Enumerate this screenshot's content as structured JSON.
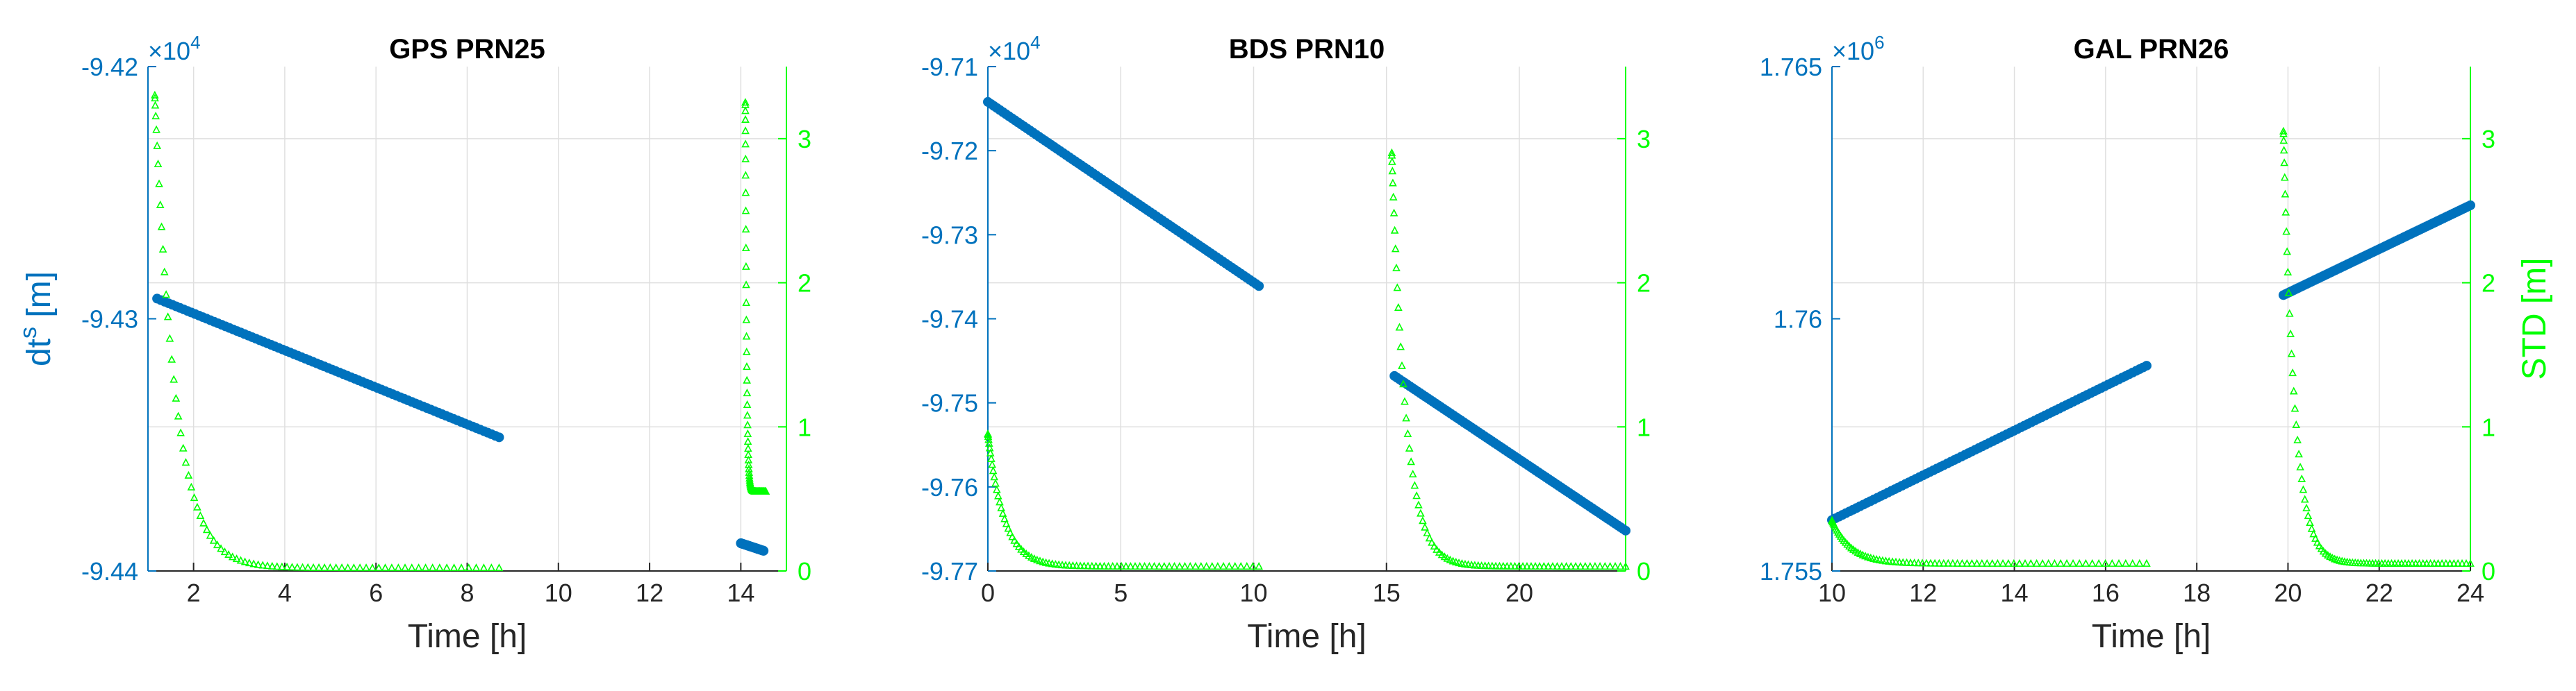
{
  "colors": {
    "left_axis": "#0072BD",
    "right_axis": "#00FF00",
    "axes_text": "#262626",
    "grid": "#DFDFDF"
  },
  "chart_data": [
    {
      "type": "line",
      "title": "GPS PRN25",
      "xlabel": "Time [h]",
      "ylabel_left": "dt^s [m]",
      "ylabel_right": "",
      "xlim": [
        1,
        15
      ],
      "ylim_left": [
        -9.44,
        -9.42
      ],
      "ylim_right": [
        0,
        3.5
      ],
      "left_exponent": "4",
      "x_ticks": [
        2,
        4,
        6,
        8,
        10,
        12,
        14
      ],
      "x_tick_labels": [
        "2",
        "4",
        "6",
        "8",
        "10",
        "12",
        "14"
      ],
      "y_left_ticks": [
        -9.44,
        -9.43,
        -9.42
      ],
      "y_left_tick_labels": [
        "-9.44",
        "-9.43",
        "-9.42"
      ],
      "y_right_ticks": [
        0,
        1,
        2,
        3
      ],
      "y_right_tick_labels": [
        "0",
        "1",
        "2",
        "3"
      ],
      "series": [
        {
          "name": "dt^s",
          "axis": "left",
          "marker": "o",
          "segments": [
            {
              "x0": 1.2,
              "x1": 8.7,
              "y0": -9.4292,
              "y1": -9.4347,
              "shape": "linear"
            },
            {
              "x0": 14.0,
              "x1": 14.5,
              "y0": -9.4389,
              "y1": -9.4392,
              "shape": "linear"
            }
          ]
        },
        {
          "name": "STD",
          "axis": "right",
          "marker": "^",
          "segments": [
            {
              "x0": 1.15,
              "x1": 8.7,
              "start": 3.3,
              "end": 0.02,
              "shape": "decay"
            },
            {
              "x0": 14.1,
              "x1": 14.55,
              "start": 3.25,
              "end": 0.55,
              "shape": "decay"
            }
          ]
        }
      ]
    },
    {
      "type": "line",
      "title": "BDS PRN10",
      "xlabel": "Time [h]",
      "ylabel_left": "",
      "ylabel_right": "",
      "xlim": [
        0,
        24
      ],
      "ylim_left": [
        -9.77,
        -9.71
      ],
      "ylim_right": [
        0,
        3.5
      ],
      "left_exponent": "4",
      "x_ticks": [
        0,
        5,
        10,
        15,
        20
      ],
      "x_tick_labels": [
        "0",
        "5",
        "10",
        "15",
        "20"
      ],
      "y_left_ticks": [
        -9.77,
        -9.76,
        -9.75,
        -9.74,
        -9.73,
        -9.72,
        -9.71
      ],
      "y_left_tick_labels": [
        "-9.77",
        "-9.76",
        "-9.75",
        "-9.74",
        "-9.73",
        "-9.72",
        "-9.71"
      ],
      "y_right_ticks": [
        0,
        1,
        2,
        3
      ],
      "y_right_tick_labels": [
        "0",
        "1",
        "2",
        "3"
      ],
      "series": [
        {
          "name": "dt^s",
          "axis": "left",
          "marker": "o",
          "segments": [
            {
              "x0": 0.0,
              "x1": 10.2,
              "y0": -9.7142,
              "y1": -9.7361,
              "shape": "linear"
            },
            {
              "x0": 15.3,
              "x1": 24.0,
              "y0": -9.7468,
              "y1": -9.7652,
              "shape": "linear"
            }
          ]
        },
        {
          "name": "STD",
          "axis": "right",
          "marker": "^",
          "segments": [
            {
              "x0": 0.0,
              "x1": 10.2,
              "start": 0.95,
              "end": 0.03,
              "shape": "decay"
            },
            {
              "x0": 15.2,
              "x1": 24.0,
              "start": 2.9,
              "end": 0.03,
              "shape": "decay"
            }
          ]
        }
      ]
    },
    {
      "type": "line",
      "title": "GAL PRN26",
      "xlabel": "Time [h]",
      "ylabel_left": "",
      "ylabel_right": "STD [m]",
      "xlim": [
        10,
        24
      ],
      "ylim_left": [
        1.755,
        1.765
      ],
      "ylim_right": [
        0,
        3.5
      ],
      "left_exponent": "6",
      "x_ticks": [
        10,
        12,
        14,
        16,
        18,
        20,
        22,
        24
      ],
      "x_tick_labels": [
        "10",
        "12",
        "14",
        "16",
        "18",
        "20",
        "22",
        "24"
      ],
      "y_left_ticks": [
        1.755,
        1.76,
        1.765
      ],
      "y_left_tick_labels": [
        "1.755",
        "1.76",
        "1.765"
      ],
      "y_right_ticks": [
        0,
        1,
        2,
        3
      ],
      "y_right_tick_labels": [
        "0",
        "1",
        "2",
        "3"
      ],
      "series": [
        {
          "name": "dt^s",
          "axis": "left",
          "marker": "o",
          "segments": [
            {
              "x0": 10.0,
              "x1": 16.9,
              "y0": 1.75601,
              "y1": 1.75907,
              "shape": "linear"
            },
            {
              "x0": 19.9,
              "x1": 24.0,
              "y0": 1.76047,
              "y1": 1.76225,
              "shape": "linear"
            }
          ]
        },
        {
          "name": "STD",
          "axis": "right",
          "marker": "^",
          "segments": [
            {
              "x0": 10.0,
              "x1": 16.9,
              "start": 0.35,
              "end": 0.05,
              "shape": "decay"
            },
            {
              "x0": 19.9,
              "x1": 24.0,
              "start": 3.05,
              "end": 0.05,
              "shape": "decay"
            }
          ]
        }
      ]
    }
  ]
}
